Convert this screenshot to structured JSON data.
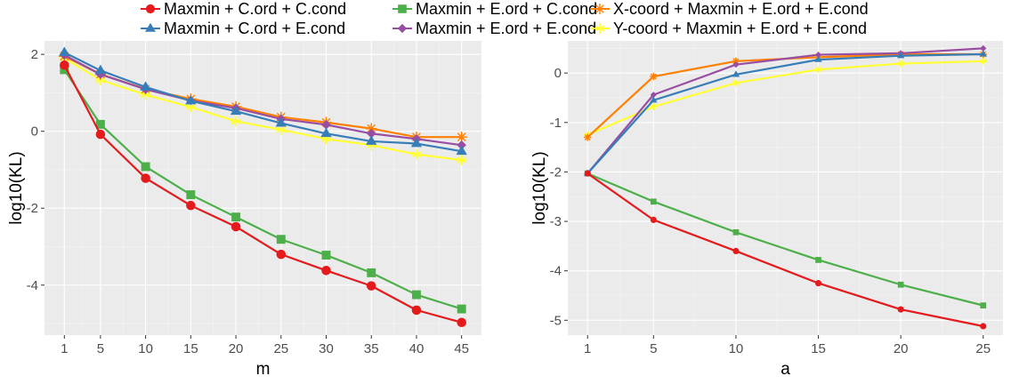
{
  "legend": {
    "entries": [
      {
        "label": "Maxmin + C.ord + C.cond",
        "color": "#E41A1C",
        "shape": "circle"
      },
      {
        "label": "Maxmin + C.ord + E.cond",
        "color": "#377EB8",
        "shape": "triangle"
      },
      {
        "label": "Maxmin + E.ord + C.cond",
        "color": "#4DAF4A",
        "shape": "square"
      },
      {
        "label": "Maxmin + E.ord + E.cond",
        "color": "#984EA3",
        "shape": "diamond"
      },
      {
        "label": "X-coord + Maxmin + E.ord + E.cond",
        "color": "#FF7F00",
        "shape": "asterisk"
      },
      {
        "label": "Y-coord + Maxmin + E.ord + E.cond",
        "color": "#FFFF33",
        "shape": "star"
      }
    ]
  },
  "chart_data": [
    {
      "type": "line",
      "xlabel": "m",
      "ylabel": "log10(KL)",
      "xlim": [
        -1.2,
        47.2
      ],
      "ylim": [
        -5.3,
        2.35
      ],
      "x_ticks": [
        1,
        5,
        10,
        15,
        20,
        25,
        30,
        35,
        40,
        45
      ],
      "y_ticks": [
        2,
        0,
        -2,
        -4
      ],
      "x": [
        1,
        5,
        10,
        15,
        20,
        25,
        30,
        35,
        40,
        45
      ],
      "series": [
        {
          "name": "Maxmin + C.ord + C.cond",
          "values": [
            1.72,
            -0.08,
            -1.22,
            -1.93,
            -2.48,
            -3.2,
            -3.62,
            -4.02,
            -4.65,
            -4.97
          ]
        },
        {
          "name": "Maxmin + C.ord + E.cond",
          "values": [
            2.05,
            1.58,
            1.15,
            0.79,
            0.52,
            0.21,
            -0.06,
            -0.26,
            -0.32,
            -0.52
          ]
        },
        {
          "name": "Maxmin + E.ord + C.cond",
          "values": [
            1.6,
            0.18,
            -0.92,
            -1.65,
            -2.23,
            -2.81,
            -3.22,
            -3.68,
            -4.25,
            -4.62
          ]
        },
        {
          "name": "Maxmin + E.ord + E.cond",
          "values": [
            1.98,
            1.48,
            1.09,
            0.8,
            0.6,
            0.32,
            0.17,
            -0.06,
            -0.2,
            -0.36
          ]
        },
        {
          "name": "X-coord + Maxmin + E.ord + E.cond",
          "values": [
            1.95,
            1.48,
            1.1,
            0.84,
            0.64,
            0.37,
            0.23,
            0.07,
            -0.15,
            -0.15
          ]
        },
        {
          "name": "Y-coord + Maxmin + E.ord + E.cond",
          "values": [
            1.9,
            1.33,
            0.95,
            0.63,
            0.26,
            0.04,
            -0.2,
            -0.36,
            -0.6,
            -0.75
          ]
        }
      ]
    },
    {
      "type": "line",
      "xlabel": "a",
      "ylabel": "log10(KL)",
      "xlim": [
        -0.2,
        26.2
      ],
      "ylim": [
        -5.3,
        0.65
      ],
      "x_ticks": [
        1,
        5,
        10,
        15,
        20,
        25
      ],
      "y_ticks": [
        0,
        -1,
        -2,
        -3,
        -4,
        -5
      ],
      "x": [
        1,
        5,
        10,
        15,
        20,
        25
      ],
      "series": [
        {
          "name": "Maxmin + C.ord + C.cond",
          "values": [
            -2.03,
            -2.97,
            -3.6,
            -4.25,
            -4.78,
            -5.12
          ]
        },
        {
          "name": "Maxmin + C.ord + E.cond",
          "values": [
            -2.03,
            -0.55,
            -0.03,
            0.27,
            0.35,
            0.38
          ]
        },
        {
          "name": "Maxmin + E.ord + C.cond",
          "values": [
            -2.03,
            -2.6,
            -3.22,
            -3.78,
            -4.28,
            -4.7
          ]
        },
        {
          "name": "Maxmin + E.ord + E.cond",
          "values": [
            -2.03,
            -0.44,
            0.17,
            0.37,
            0.4,
            0.5
          ]
        },
        {
          "name": "X-coord + Maxmin + E.ord + E.cond",
          "values": [
            -1.3,
            -0.07,
            0.24,
            0.32,
            0.38,
            0.38
          ]
        },
        {
          "name": "Y-coord + Maxmin + E.ord + E.cond",
          "values": [
            -1.25,
            -0.68,
            -0.2,
            0.07,
            0.19,
            0.24
          ]
        }
      ]
    }
  ]
}
